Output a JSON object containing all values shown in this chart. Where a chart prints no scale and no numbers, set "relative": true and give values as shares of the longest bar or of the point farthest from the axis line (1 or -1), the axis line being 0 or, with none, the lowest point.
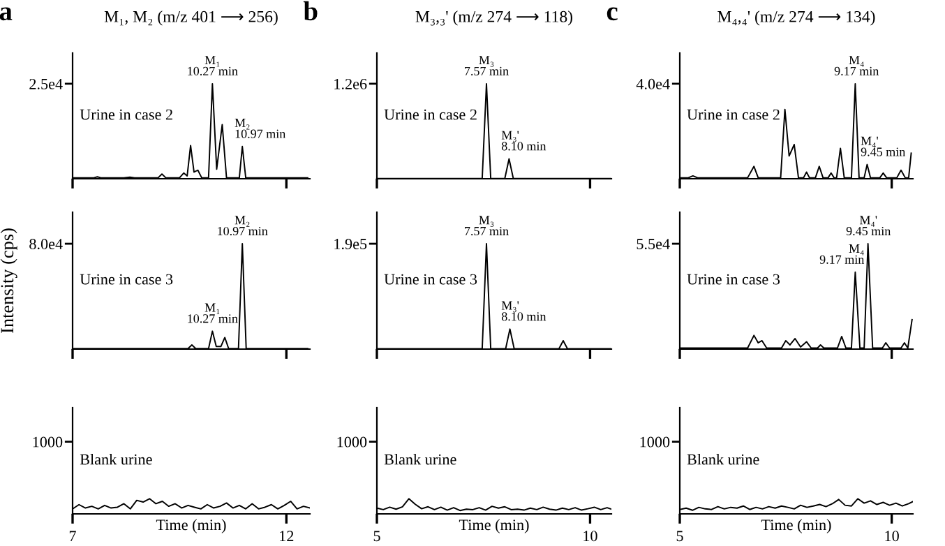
{
  "chart_data": [
    {
      "type": "line",
      "relative": true,
      "title": "M₁, M₂ (m/z 401 ⟶ 256)",
      "subtitle": "Urine in case 2",
      "color": "#000000",
      "x": [
        7.0,
        7.5,
        7.58,
        7.66,
        8.2,
        8.34,
        8.45,
        9.0,
        9.09,
        9.18,
        9.5,
        9.6,
        9.68,
        9.76,
        9.84,
        9.93,
        10.02,
        10.18,
        10.27,
        10.37,
        10.5,
        10.6,
        10.9,
        10.97,
        11.05,
        11.5,
        12.0,
        12.5
      ],
      "values": [
        0.01,
        0.01,
        0.02,
        0.01,
        0.01,
        0.017,
        0.01,
        0.01,
        0.05,
        0.01,
        0.01,
        0.06,
        0.03,
        0.35,
        0.07,
        0.09,
        0.01,
        0.01,
        1,
        0.1,
        0.57,
        0.01,
        0.01,
        0.34,
        0.01,
        0.01,
        0.01,
        0.01
      ],
      "xlim": [
        7,
        12.55
      ],
      "xticks": [
        {
          "value": 7,
          "label": null
        },
        {
          "value": 12,
          "label": null
        }
      ],
      "tick_labels": "y",
      "annotations": [
        "a",
        "2.5e4",
        {
          "text": "M₁\n10.27 min",
          "x": 10.27,
          "y": 1
        },
        {
          "text": "M₂\n10.97 min",
          "x": 10.97,
          "y": 0.34
        }
      ]
    },
    {
      "type": "line",
      "relative": true,
      "title": "M₃,₃' (m/z 274 ⟶ 118)",
      "subtitle": "Urine in case 2",
      "color": "#000000",
      "x": [
        5.0,
        7.3,
        7.47,
        7.57,
        7.67,
        8.0,
        8.1,
        8.2,
        10.5
      ],
      "values": [
        0.002,
        0.002,
        0.002,
        1,
        0.002,
        0.002,
        0.21,
        0.002,
        0.002
      ],
      "xlim": [
        5,
        10.5
      ],
      "xticks": [
        {
          "value": 5,
          "label": null
        },
        {
          "value": 10,
          "label": null
        }
      ],
      "tick_labels": "y",
      "annotations": [
        "b",
        "1.2e6",
        {
          "text": "M₃\n7.57 min",
          "x": 7.57,
          "y": 1
        },
        {
          "text": "M₃'\n8.10 min",
          "x": 8.1,
          "y": 0.21
        }
      ]
    },
    {
      "type": "line",
      "relative": true,
      "title": "M₄,₄' (m/z 274 ⟶ 134)",
      "subtitle": "Urine in case 2",
      "color": "#000000",
      "x": [
        5.0,
        5.2,
        5.31,
        5.42,
        6.6,
        6.75,
        6.85,
        7.38,
        7.48,
        7.58,
        7.7,
        7.8,
        7.92,
        7.99,
        8.06,
        8.2,
        8.29,
        8.38,
        8.5,
        8.57,
        8.64,
        8.7,
        8.79,
        8.88,
        9.05,
        9.14,
        9.23,
        9.35,
        9.42,
        9.5,
        9.72,
        9.8,
        9.88,
        10.12,
        10.22,
        10.32,
        10.4,
        10.46
      ],
      "values": [
        0.01,
        0.01,
        0.03,
        0.01,
        0.01,
        0.13,
        0.01,
        0.01,
        0.73,
        0.24,
        0.36,
        0.01,
        0.01,
        0.07,
        0.01,
        0.01,
        0.13,
        0.01,
        0.01,
        0.06,
        0.01,
        0.01,
        0.32,
        0.01,
        0.01,
        1,
        0.01,
        0.01,
        0.15,
        0.01,
        0.01,
        0.06,
        0.01,
        0.01,
        0.09,
        0.01,
        0.01,
        0.27
      ],
      "xlim": [
        5,
        10.5
      ],
      "xticks": [
        {
          "value": 5,
          "label": null
        },
        {
          "value": 10,
          "label": null
        }
      ],
      "tick_labels": "y",
      "annotations": [
        "c",
        "4.0e4",
        {
          "text": "M₄\n9.17 min",
          "x": 9.17,
          "y": 1
        },
        {
          "text": "M₄'\n9.45 min",
          "x": 9.45,
          "y": 0.15
        }
      ]
    },
    {
      "type": "line",
      "relative": true,
      "subtitle": "Urine in case 3",
      "ylabel": "Intensity (cps)",
      "color": "#000000",
      "x": [
        7.0,
        9.0,
        9.7,
        9.79,
        9.88,
        10.18,
        10.27,
        10.36,
        10.47,
        10.56,
        10.65,
        10.88,
        10.97,
        11.06,
        11.5,
        12.5
      ],
      "values": [
        0.005,
        0.005,
        0.005,
        0.04,
        0.005,
        0.005,
        0.17,
        0.025,
        0.025,
        0.11,
        0.005,
        0.005,
        1,
        0.005,
        0.005,
        0.005
      ],
      "xlim": [
        7,
        12.55
      ],
      "xticks": [
        {
          "value": 7,
          "label": null
        },
        {
          "value": 12,
          "label": null
        }
      ],
      "tick_labels": "y",
      "annotations": [
        "8.0e4",
        {
          "text": "M₁\n10.27 min",
          "x": 10.27,
          "y": 0.17
        },
        {
          "text": "M₂\n10.97 min",
          "x": 10.97,
          "y": 1
        }
      ]
    },
    {
      "type": "line",
      "relative": true,
      "subtitle": "Urine in case 3",
      "color": "#000000",
      "x": [
        5.0,
        7.47,
        7.57,
        7.67,
        8.02,
        8.12,
        8.22,
        9.27,
        9.37,
        9.47,
        10.5
      ],
      "values": [
        0.003,
        0.003,
        1,
        0.003,
        0.003,
        0.19,
        0.003,
        0.003,
        0.08,
        0.003,
        0.003
      ],
      "xlim": [
        5,
        10.5
      ],
      "xticks": [
        {
          "value": 5,
          "label": null
        },
        {
          "value": 10,
          "label": null
        }
      ],
      "tick_labels": "y",
      "annotations": [
        "1.9e5",
        {
          "text": "M₃\n7.57 min",
          "x": 7.57,
          "y": 1
        },
        {
          "text": "M₃'\n8.10 min",
          "x": 8.1,
          "y": 0.19
        }
      ]
    },
    {
      "type": "line",
      "relative": true,
      "subtitle": "Urine in case 3",
      "color": "#000000",
      "x": [
        5.0,
        6.6,
        6.75,
        6.85,
        6.94,
        7.05,
        7.4,
        7.5,
        7.6,
        7.72,
        7.85,
        7.99,
        8.1,
        8.25,
        8.32,
        8.4,
        8.72,
        8.82,
        8.92,
        9.05,
        9.14,
        9.25,
        9.35,
        9.44,
        9.55,
        9.78,
        9.86,
        9.95,
        10.22,
        10.3,
        10.38,
        10.48
      ],
      "values": [
        0.01,
        0.01,
        0.13,
        0.06,
        0.08,
        0.01,
        0.01,
        0.08,
        0.04,
        0.1,
        0.02,
        0.07,
        0.01,
        0.01,
        0.04,
        0.01,
        0.01,
        0.12,
        0.01,
        0.01,
        0.73,
        0.01,
        0.01,
        1,
        0.01,
        0.01,
        0.06,
        0.01,
        0.01,
        0.06,
        0.01,
        0.28
      ],
      "xlim": [
        5,
        10.5
      ],
      "xticks": [
        {
          "value": 5,
          "label": null
        },
        {
          "value": 10,
          "label": null
        }
      ],
      "tick_labels": "y",
      "annotations": [
        "5.5e4",
        {
          "text": "M₄\n9.17 min",
          "x": 9.17,
          "y": 0.73
        },
        {
          "text": "M₄'\n9.45 min",
          "x": 9.45,
          "y": 1
        }
      ]
    },
    {
      "type": "line",
      "relative": true,
      "subtitle": "Blank urine",
      "xlabel": "Time (min)",
      "color": "#000000",
      "x": [
        7.0,
        7.15,
        7.3,
        7.45,
        7.6,
        7.75,
        7.9,
        8.05,
        8.2,
        8.35,
        8.5,
        8.65,
        8.8,
        8.95,
        9.1,
        9.25,
        9.4,
        9.55,
        9.7,
        9.85,
        10.0,
        10.15,
        10.3,
        10.45,
        10.6,
        10.75,
        10.9,
        11.05,
        11.2,
        11.35,
        11.5,
        11.65,
        11.8,
        11.95,
        12.1,
        12.25,
        12.4,
        12.55
      ],
      "values": [
        0.33,
        0.61,
        0.39,
        0.5,
        0.33,
        0.56,
        0.39,
        0.44,
        0.67,
        0.33,
        0.89,
        0.78,
        1,
        0.67,
        0.83,
        0.5,
        0.67,
        0.39,
        0.56,
        0.44,
        0.33,
        0.61,
        0.39,
        0.5,
        0.72,
        0.39,
        0.56,
        0.33,
        0.67,
        0.33,
        0.44,
        0.61,
        0.33,
        0.56,
        0.83,
        0.33,
        0.5,
        0.39
      ],
      "xlim": [
        7,
        12.55
      ],
      "xticks": [
        7,
        12
      ],
      "annotations": [
        "1000"
      ]
    },
    {
      "type": "line",
      "relative": true,
      "subtitle": "Blank urine",
      "xlabel": "Time (min)",
      "color": "#000000",
      "x": [
        5.0,
        5.15,
        5.3,
        5.45,
        5.6,
        5.75,
        5.9,
        6.05,
        6.2,
        6.35,
        6.5,
        6.65,
        6.8,
        6.95,
        7.1,
        7.25,
        7.4,
        7.55,
        7.7,
        7.85,
        8.0,
        8.15,
        8.3,
        8.45,
        8.6,
        8.75,
        8.9,
        9.05,
        9.2,
        9.35,
        9.5,
        9.65,
        9.8,
        9.95,
        10.1,
        10.25,
        10.4,
        10.5
      ],
      "values": [
        0.38,
        0.28,
        0.44,
        0.31,
        0.47,
        1,
        0.63,
        0.34,
        0.47,
        0.28,
        0.44,
        0.25,
        0.41,
        0.22,
        0.31,
        0.28,
        0.41,
        0.25,
        0.5,
        0.38,
        0.47,
        0.28,
        0.31,
        0.25,
        0.38,
        0.28,
        0.44,
        0.31,
        0.25,
        0.38,
        0.28,
        0.41,
        0.25,
        0.34,
        0.44,
        0.28,
        0.41,
        0.31
      ],
      "xlim": [
        5,
        10.5
      ],
      "xticks": [
        5,
        10
      ],
      "annotations": [
        "1000"
      ]
    },
    {
      "type": "line",
      "relative": true,
      "subtitle": "Blank urine",
      "xlabel": "Time (min)",
      "color": "#000000",
      "x": [
        5.0,
        5.15,
        5.3,
        5.45,
        5.6,
        5.75,
        5.9,
        6.05,
        6.2,
        6.35,
        6.5,
        6.65,
        6.8,
        6.95,
        7.1,
        7.25,
        7.4,
        7.55,
        7.7,
        7.85,
        8.0,
        8.15,
        8.3,
        8.45,
        8.6,
        8.75,
        8.9,
        9.05,
        9.2,
        9.35,
        9.5,
        9.65,
        9.8,
        9.95,
        10.1,
        10.25,
        10.4,
        10.5
      ],
      "values": [
        0.29,
        0.38,
        0.24,
        0.43,
        0.33,
        0.29,
        0.48,
        0.33,
        0.43,
        0.38,
        0.52,
        0.29,
        0.43,
        0.33,
        0.48,
        0.38,
        0.52,
        0.43,
        0.33,
        0.57,
        0.43,
        0.52,
        0.62,
        0.48,
        0.67,
        0.95,
        0.57,
        0.52,
        1,
        0.71,
        0.86,
        0.62,
        0.76,
        0.57,
        0.71,
        0.52,
        0.67,
        0.81
      ],
      "xlim": [
        5,
        10.5
      ],
      "xticks": [
        5,
        10
      ],
      "annotations": [
        "1000"
      ]
    }
  ]
}
